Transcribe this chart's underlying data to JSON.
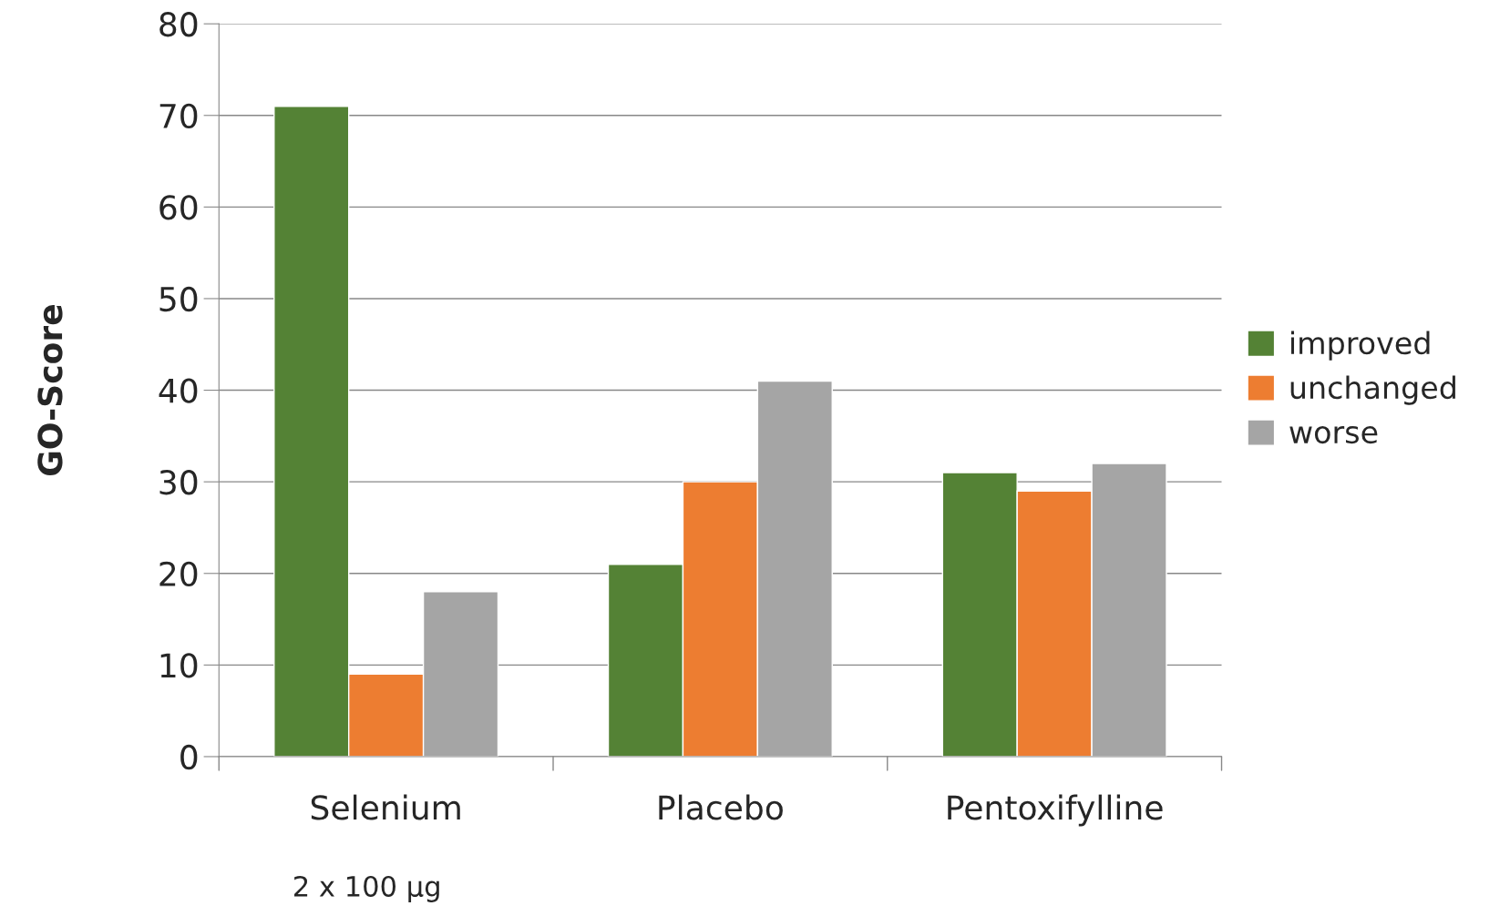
{
  "chart_data": {
    "type": "bar",
    "ylabel": "GO-Score",
    "categories": [
      "Selenium",
      "Placebo",
      "Pentoxifylline"
    ],
    "series": [
      {
        "name": "improved",
        "color": "#548235",
        "values": [
          71,
          21,
          31
        ]
      },
      {
        "name": "unchanged",
        "color": "#ed7d31",
        "values": [
          9,
          30,
          29
        ]
      },
      {
        "name": "worse",
        "color": "#a5a5a5",
        "values": [
          18,
          41,
          32
        ]
      }
    ],
    "ylim": [
      0,
      80
    ],
    "yticks": [
      0,
      10,
      20,
      30,
      40,
      50,
      60,
      70,
      80
    ],
    "grid": "y",
    "legend": "right",
    "annotations": [
      "2 x 100 µg"
    ]
  }
}
